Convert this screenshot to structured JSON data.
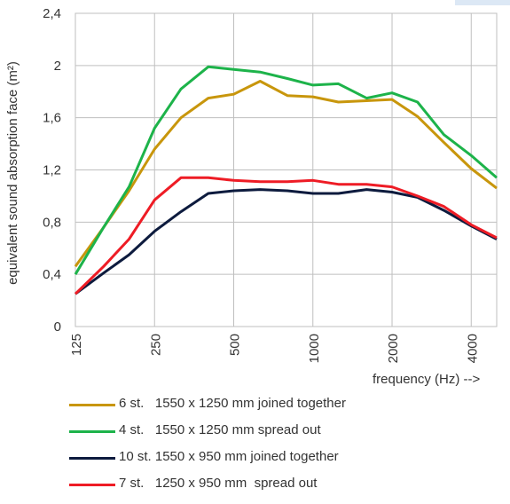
{
  "chart_data": {
    "type": "line",
    "title": "",
    "ylabel": "equivalent sound absorption face (m²)",
    "xlabel": "frequency (Hz) -->",
    "ylim": [
      0,
      2.4
    ],
    "yticks": [
      "0",
      "0,4",
      "0,8",
      "1,2",
      "1,6",
      "2",
      "2,4"
    ],
    "ytick_values": [
      0,
      0.4,
      0.8,
      1.2,
      1.6,
      2.0,
      2.4
    ],
    "xscale": "log",
    "xticks": [
      "125",
      "250",
      "500",
      "1000",
      "2000",
      "4000"
    ],
    "xtick_values": [
      125,
      250,
      500,
      1000,
      2000,
      4000
    ],
    "x": [
      125,
      160,
      200,
      250,
      315,
      400,
      500,
      630,
      800,
      1000,
      1250,
      1600,
      2000,
      2500,
      3150,
      4000,
      5000
    ],
    "grid": true,
    "legend_position": "bottom",
    "series": [
      {
        "name": "6 st.   1550 x 1250 mm joined together",
        "color": "#c8960c",
        "values": [
          0.46,
          0.76,
          1.04,
          1.36,
          1.6,
          1.75,
          1.78,
          1.88,
          1.77,
          1.76,
          1.72,
          1.73,
          1.74,
          1.61,
          1.41,
          1.21,
          1.06
        ]
      },
      {
        "name": "4 st.   1550 x 1250 mm spread out",
        "color": "#1db34a",
        "values": [
          0.4,
          0.76,
          1.07,
          1.52,
          1.82,
          1.99,
          1.97,
          1.95,
          1.9,
          1.85,
          1.86,
          1.75,
          1.79,
          1.72,
          1.47,
          1.31,
          1.14
        ]
      },
      {
        "name": "10 st. 1550 x 950 mm joined together",
        "color": "#0d1b3e",
        "values": [
          0.25,
          0.41,
          0.55,
          0.73,
          0.88,
          1.02,
          1.04,
          1.05,
          1.04,
          1.02,
          1.02,
          1.05,
          1.03,
          0.99,
          0.89,
          0.77,
          0.67
        ]
      },
      {
        "name": "7 st.   1250 x 950 mm  spread out",
        "color": "#ee1c25",
        "values": [
          0.25,
          0.46,
          0.67,
          0.97,
          1.14,
          1.14,
          1.12,
          1.11,
          1.11,
          1.12,
          1.09,
          1.09,
          1.07,
          1.0,
          0.92,
          0.78,
          0.68
        ]
      }
    ]
  }
}
